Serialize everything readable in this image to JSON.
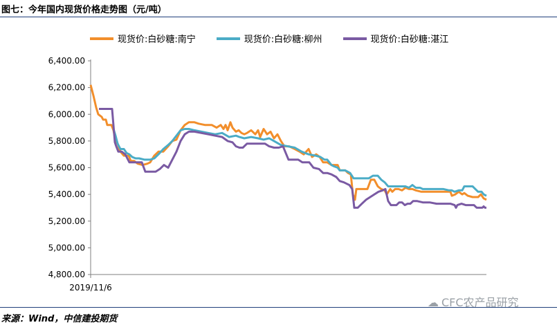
{
  "figure_title": "图七：今年国内现货价格走势图（元/吨）",
  "source_note": "来源：Wind，中信建投期货",
  "watermark": "CFC农产品研究",
  "chart_data": {
    "type": "line",
    "x_tick_label": "2019/11/6",
    "yticks": [
      "4,800.00",
      "5,000.00",
      "5,200.00",
      "5,400.00",
      "5,600.00",
      "5,800.00",
      "6,000.00",
      "6,200.00",
      "6,400.00"
    ],
    "ylim": [
      4800,
      6400
    ],
    "legend_position": "top",
    "grid": false,
    "series": [
      {
        "name": "现货价:白砂糖:南宁",
        "color": "#f28e2b",
        "values": [
          [
            0,
            6220
          ],
          [
            4,
            6140
          ],
          [
            8,
            6050
          ],
          [
            11,
            6000
          ],
          [
            16,
            5980
          ],
          [
            18,
            5960
          ],
          [
            22,
            5960
          ],
          [
            24,
            5920
          ],
          [
            30,
            5920
          ],
          [
            33,
            5880
          ],
          [
            36,
            5800
          ],
          [
            39,
            5780
          ],
          [
            43,
            5720
          ],
          [
            48,
            5690
          ],
          [
            55,
            5690
          ],
          [
            58,
            5650
          ],
          [
            63,
            5650
          ],
          [
            68,
            5630
          ],
          [
            75,
            5620
          ],
          [
            82,
            5630
          ],
          [
            86,
            5640
          ],
          [
            92,
            5690
          ],
          [
            98,
            5720
          ],
          [
            105,
            5720
          ],
          [
            112,
            5760
          ],
          [
            118,
            5800
          ],
          [
            124,
            5810
          ],
          [
            130,
            5880
          ],
          [
            136,
            5920
          ],
          [
            142,
            5940
          ],
          [
            150,
            5940
          ],
          [
            156,
            5930
          ],
          [
            165,
            5920
          ],
          [
            175,
            5920
          ],
          [
            182,
            5900
          ],
          [
            188,
            5920
          ],
          [
            192,
            5890
          ],
          [
            195,
            5920
          ],
          [
            198,
            5880
          ],
          [
            202,
            5940
          ],
          [
            205,
            5900
          ],
          [
            210,
            5870
          ],
          [
            214,
            5880
          ],
          [
            218,
            5860
          ],
          [
            222,
            5850
          ],
          [
            226,
            5860
          ],
          [
            232,
            5880
          ],
          [
            238,
            5850
          ],
          [
            242,
            5880
          ],
          [
            245,
            5830
          ],
          [
            250,
            5890
          ],
          [
            255,
            5850
          ],
          [
            260,
            5870
          ],
          [
            265,
            5820
          ],
          [
            270,
            5850
          ],
          [
            275,
            5800
          ],
          [
            280,
            5760
          ],
          [
            287,
            5760
          ],
          [
            295,
            5740
          ],
          [
            302,
            5720
          ],
          [
            308,
            5700
          ],
          [
            315,
            5740
          ],
          [
            320,
            5680
          ],
          [
            326,
            5700
          ],
          [
            331,
            5680
          ],
          [
            336,
            5640
          ],
          [
            342,
            5640
          ],
          [
            348,
            5620
          ],
          [
            352,
            5620
          ],
          [
            357,
            5620
          ],
          [
            360,
            5580
          ],
          [
            364,
            5580
          ],
          [
            368,
            5580
          ],
          [
            372,
            5560
          ],
          [
            376,
            5550
          ],
          [
            379,
            5400
          ],
          [
            382,
            5360
          ],
          [
            384,
            5440
          ],
          [
            388,
            5440
          ],
          [
            395,
            5440
          ],
          [
            400,
            5440
          ],
          [
            405,
            5510
          ],
          [
            410,
            5510
          ],
          [
            415,
            5460
          ],
          [
            420,
            5440
          ],
          [
            425,
            5430
          ],
          [
            428,
            5400
          ],
          [
            433,
            5440
          ],
          [
            436,
            5420
          ],
          [
            440,
            5440
          ],
          [
            445,
            5440
          ],
          [
            450,
            5430
          ],
          [
            455,
            5450
          ],
          [
            460,
            5440
          ],
          [
            465,
            5440
          ],
          [
            470,
            5430
          ],
          [
            478,
            5420
          ],
          [
            485,
            5420
          ],
          [
            495,
            5420
          ],
          [
            505,
            5420
          ],
          [
            515,
            5420
          ],
          [
            520,
            5420
          ],
          [
            522,
            5390
          ],
          [
            527,
            5400
          ],
          [
            532,
            5420
          ],
          [
            537,
            5400
          ],
          [
            540,
            5410
          ],
          [
            545,
            5390
          ],
          [
            552,
            5380
          ],
          [
            560,
            5380
          ],
          [
            564,
            5400
          ],
          [
            568,
            5370
          ],
          [
            572,
            5360
          ]
        ]
      },
      {
        "name": "现货价:白砂糖:柳州",
        "color": "#4bacc6",
        "values": [
          [
            33,
            5890
          ],
          [
            36,
            5840
          ],
          [
            39,
            5780
          ],
          [
            43,
            5740
          ],
          [
            48,
            5740
          ],
          [
            52,
            5710
          ],
          [
            56,
            5700
          ],
          [
            60,
            5680
          ],
          [
            65,
            5670
          ],
          [
            70,
            5670
          ],
          [
            78,
            5660
          ],
          [
            86,
            5660
          ],
          [
            92,
            5670
          ],
          [
            98,
            5700
          ],
          [
            105,
            5740
          ],
          [
            112,
            5770
          ],
          [
            118,
            5800
          ],
          [
            124,
            5840
          ],
          [
            130,
            5880
          ],
          [
            136,
            5890
          ],
          [
            142,
            5890
          ],
          [
            150,
            5880
          ],
          [
            160,
            5870
          ],
          [
            170,
            5860
          ],
          [
            180,
            5850
          ],
          [
            190,
            5860
          ],
          [
            200,
            5830
          ],
          [
            210,
            5840
          ],
          [
            215,
            5830
          ],
          [
            222,
            5820
          ],
          [
            232,
            5830
          ],
          [
            242,
            5820
          ],
          [
            250,
            5810
          ],
          [
            258,
            5820
          ],
          [
            265,
            5800
          ],
          [
            275,
            5770
          ],
          [
            285,
            5760
          ],
          [
            295,
            5750
          ],
          [
            305,
            5720
          ],
          [
            315,
            5700
          ],
          [
            325,
            5690
          ],
          [
            332,
            5680
          ],
          [
            338,
            5660
          ],
          [
            342,
            5660
          ],
          [
            348,
            5620
          ],
          [
            352,
            5610
          ],
          [
            357,
            5600
          ],
          [
            360,
            5580
          ],
          [
            364,
            5580
          ],
          [
            368,
            5580
          ],
          [
            375,
            5560
          ],
          [
            380,
            5520
          ],
          [
            388,
            5520
          ],
          [
            395,
            5520
          ],
          [
            402,
            5520
          ],
          [
            408,
            5540
          ],
          [
            415,
            5540
          ],
          [
            420,
            5510
          ],
          [
            425,
            5490
          ],
          [
            430,
            5460
          ],
          [
            435,
            5460
          ],
          [
            440,
            5460
          ],
          [
            448,
            5460
          ],
          [
            455,
            5460
          ],
          [
            460,
            5450
          ],
          [
            465,
            5470
          ],
          [
            470,
            5450
          ],
          [
            476,
            5450
          ],
          [
            480,
            5440
          ],
          [
            490,
            5440
          ],
          [
            500,
            5440
          ],
          [
            510,
            5440
          ],
          [
            518,
            5430
          ],
          [
            522,
            5430
          ],
          [
            526,
            5420
          ],
          [
            532,
            5430
          ],
          [
            537,
            5430
          ],
          [
            540,
            5460
          ],
          [
            545,
            5460
          ],
          [
            552,
            5460
          ],
          [
            556,
            5440
          ],
          [
            560,
            5420
          ],
          [
            565,
            5420
          ],
          [
            568,
            5400
          ],
          [
            572,
            5390
          ]
        ]
      },
      {
        "name": "现货价:白砂糖:湛江",
        "color": "#7a5aa3",
        "values": [
          [
            12,
            6040
          ],
          [
            18,
            6040
          ],
          [
            25,
            6040
          ],
          [
            31,
            6040
          ],
          [
            35,
            5790
          ],
          [
            37,
            5760
          ],
          [
            40,
            5720
          ],
          [
            45,
            5720
          ],
          [
            50,
            5700
          ],
          [
            56,
            5640
          ],
          [
            62,
            5640
          ],
          [
            68,
            5640
          ],
          [
            74,
            5640
          ],
          [
            79,
            5570
          ],
          [
            86,
            5570
          ],
          [
            94,
            5570
          ],
          [
            100,
            5590
          ],
          [
            106,
            5620
          ],
          [
            112,
            5600
          ],
          [
            118,
            5660
          ],
          [
            124,
            5720
          ],
          [
            130,
            5800
          ],
          [
            136,
            5850
          ],
          [
            142,
            5870
          ],
          [
            150,
            5870
          ],
          [
            160,
            5860
          ],
          [
            170,
            5850
          ],
          [
            180,
            5840
          ],
          [
            190,
            5830
          ],
          [
            198,
            5800
          ],
          [
            205,
            5790
          ],
          [
            210,
            5760
          ],
          [
            215,
            5750
          ],
          [
            220,
            5750
          ],
          [
            226,
            5780
          ],
          [
            232,
            5780
          ],
          [
            240,
            5780
          ],
          [
            246,
            5780
          ],
          [
            252,
            5780
          ],
          [
            258,
            5760
          ],
          [
            265,
            5750
          ],
          [
            272,
            5750
          ],
          [
            278,
            5760
          ],
          [
            282,
            5710
          ],
          [
            286,
            5660
          ],
          [
            292,
            5660
          ],
          [
            300,
            5660
          ],
          [
            306,
            5640
          ],
          [
            312,
            5640
          ],
          [
            316,
            5640
          ],
          [
            322,
            5600
          ],
          [
            330,
            5590
          ],
          [
            336,
            5560
          ],
          [
            342,
            5560
          ],
          [
            348,
            5550
          ],
          [
            355,
            5530
          ],
          [
            360,
            5500
          ],
          [
            366,
            5490
          ],
          [
            370,
            5480
          ],
          [
            374,
            5470
          ],
          [
            378,
            5440
          ],
          [
            381,
            5300
          ],
          [
            386,
            5300
          ],
          [
            392,
            5330
          ],
          [
            398,
            5360
          ],
          [
            404,
            5380
          ],
          [
            410,
            5400
          ],
          [
            416,
            5420
          ],
          [
            422,
            5430
          ],
          [
            426,
            5440
          ],
          [
            430,
            5350
          ],
          [
            434,
            5320
          ],
          [
            438,
            5320
          ],
          [
            442,
            5320
          ],
          [
            446,
            5340
          ],
          [
            450,
            5340
          ],
          [
            454,
            5320
          ],
          [
            458,
            5330
          ],
          [
            462,
            5330
          ],
          [
            466,
            5350
          ],
          [
            472,
            5350
          ],
          [
            480,
            5340
          ],
          [
            490,
            5340
          ],
          [
            500,
            5330
          ],
          [
            510,
            5330
          ],
          [
            520,
            5330
          ],
          [
            526,
            5320
          ],
          [
            528,
            5300
          ],
          [
            530,
            5320
          ],
          [
            536,
            5330
          ],
          [
            542,
            5320
          ],
          [
            548,
            5320
          ],
          [
            554,
            5320
          ],
          [
            558,
            5300
          ],
          [
            562,
            5300
          ],
          [
            566,
            5300
          ],
          [
            568,
            5310
          ],
          [
            570,
            5300
          ],
          [
            572,
            5300
          ]
        ]
      }
    ]
  }
}
